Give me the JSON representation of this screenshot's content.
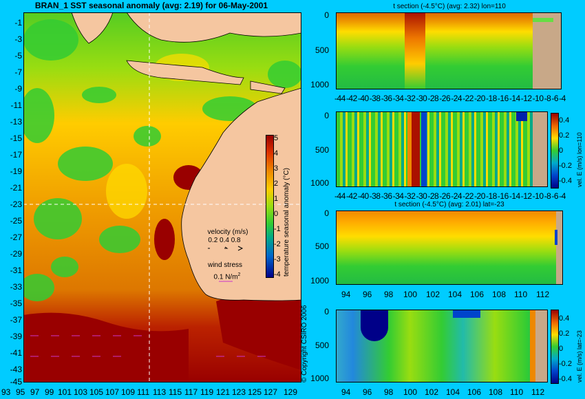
{
  "main_title": "BRAN_1  SST seasonal anomaly  (avg: 2.19)  for 06-May-2001",
  "map": {
    "lat_ticks": [
      "-1",
      "-3",
      "-5",
      "-7",
      "-9",
      "-11",
      "-13",
      "-15",
      "-17",
      "-19",
      "-21",
      "-23",
      "-25",
      "-27",
      "-29",
      "-31",
      "-33",
      "-35",
      "-37",
      "-39",
      "-41",
      "-43",
      "-45"
    ],
    "lon_ticks": [
      "93",
      "95",
      "97",
      "99",
      "101",
      "103",
      "105",
      "107",
      "109",
      "111",
      "113",
      "115",
      "117",
      "119",
      "121",
      "123",
      "125",
      "127",
      "129"
    ],
    "colorbar_ticks": [
      "5",
      "4",
      "3",
      "2",
      "1",
      "0",
      "-1",
      "-2",
      "-3",
      "-4"
    ],
    "colorbar_label": "temperature seasonal anomaly (°C)",
    "velocity_label": "velocity (m/s)",
    "velocity_scale": "0.2 0.4 0.8",
    "wind_label": "wind stress",
    "wind_value": "0.1 N/m",
    "wind_exp": "2",
    "copyright": "© Copyright CSIRO 2006",
    "colors": {
      "land": "#f5c6a0",
      "ocean_cool": "#33cc33",
      "ocean_warm": "#ee8800",
      "anomaly_hot": "#990000"
    }
  },
  "panels": {
    "p1": {
      "title": "t section (-4.5°C) (avg: 2.32) lon=110",
      "depth_ticks": [
        "0",
        "500",
        "1000"
      ],
      "x_ticks": [
        "-44",
        "-42",
        "-40",
        "-38",
        "-36",
        "-34",
        "-32",
        "-30",
        "-28",
        "-26",
        "-24",
        "-22",
        "-20",
        "-18",
        "-16",
        "-14",
        "-12",
        "-10",
        "-8",
        "-6",
        "-4"
      ]
    },
    "p2": {
      "depth_ticks": [
        "0",
        "500",
        "1000"
      ],
      "x_ticks": [
        "-44",
        "-42",
        "-40",
        "-38",
        "-36",
        "-34",
        "-32",
        "-30",
        "-28",
        "-26",
        "-24",
        "-22",
        "-20",
        "-18",
        "-16",
        "-14",
        "-12",
        "-10",
        "-8",
        "-6",
        "-4"
      ],
      "cb_ticks": [
        "0.4",
        "0.2",
        "0",
        "-0.2",
        "-0.4"
      ],
      "cb_label": "vel. E (m/s) lon=110"
    },
    "p3": {
      "title": "t section (-4.5°C) (avg: 2.01) lat=-23",
      "depth_ticks": [
        "0",
        "500",
        "1000"
      ],
      "x_ticks": [
        "94",
        "96",
        "98",
        "100",
        "102",
        "104",
        "106",
        "108",
        "110",
        "112"
      ]
    },
    "p4": {
      "depth_ticks": [
        "0",
        "500",
        "1000"
      ],
      "x_ticks": [
        "94",
        "96",
        "98",
        "100",
        "102",
        "104",
        "106",
        "108",
        "110",
        "112"
      ],
      "cb_ticks": [
        "0.4",
        "0.2",
        "0",
        "-0.2",
        "-0.4"
      ],
      "cb_label": "vel. E (m/s) lat=-23"
    }
  }
}
